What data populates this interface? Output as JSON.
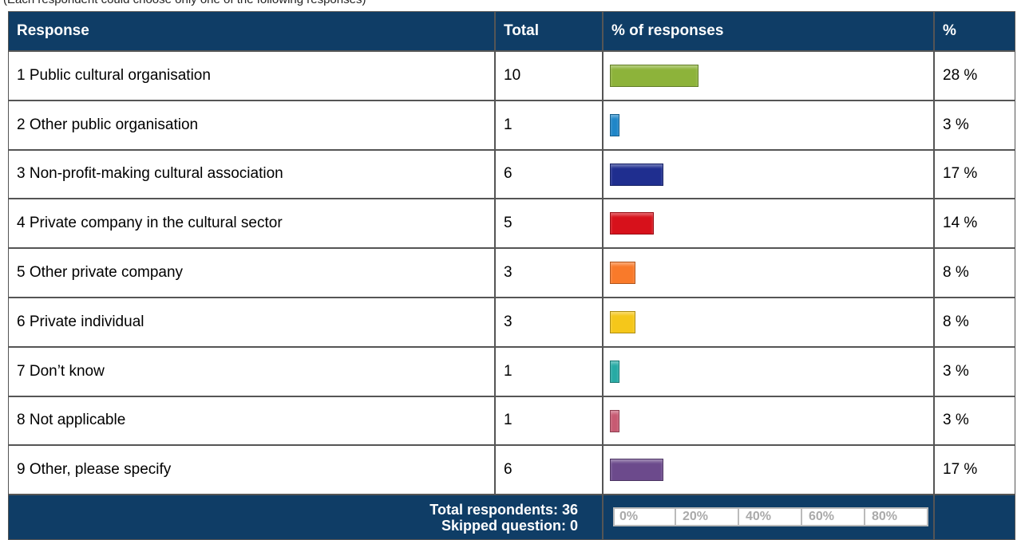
{
  "note": "(Each respondent could choose only one of the following responses)",
  "table": {
    "headers": [
      "Response",
      "Total",
      "% of responses",
      "%"
    ],
    "rows": [
      {
        "response": "1 Public cultural organisation",
        "total": 10,
        "percent": 28,
        "percent_label": "28 %",
        "color": "#8db33a"
      },
      {
        "response": "2 Other public organisation",
        "total": 1,
        "percent": 3,
        "percent_label": "3 %",
        "color": "#1f86c8"
      },
      {
        "response": "3 Non-profit-making cultural association",
        "total": 6,
        "percent": 17,
        "percent_label": "17 %",
        "color": "#1f2e8f"
      },
      {
        "response": "4 Private company in the cultural sector",
        "total": 5,
        "percent": 14,
        "percent_label": "14 %",
        "color": "#d7111b"
      },
      {
        "response": "5 Other private company",
        "total": 3,
        "percent": 8,
        "percent_label": "8 %",
        "color": "#f97a2a"
      },
      {
        "response": "6 Private individual",
        "total": 3,
        "percent": 8,
        "percent_label": "8 %",
        "color": "#f5c71a"
      },
      {
        "response": "7 Don’t know",
        "total": 1,
        "percent": 3,
        "percent_label": "3 %",
        "color": "#27aaa4"
      },
      {
        "response": "8 Not applicable",
        "total": 1,
        "percent": 3,
        "percent_label": "3 %",
        "color": "#c75a72"
      },
      {
        "response": "9 Other, please specify",
        "total": 6,
        "percent": 17,
        "percent_label": "17 %",
        "color": "#6c4a8c"
      }
    ],
    "footer": {
      "total_respondents": "Total respondents: 36",
      "skipped": "Skipped question: 0"
    }
  },
  "axis": {
    "xlim": [
      0,
      100
    ],
    "ticks": [
      {
        "value": 0,
        "label": "0%"
      },
      {
        "value": 20,
        "label": "20%"
      },
      {
        "value": 40,
        "label": "40%"
      },
      {
        "value": 60,
        "label": "60%"
      },
      {
        "value": 80,
        "label": "80%"
      }
    ]
  }
}
